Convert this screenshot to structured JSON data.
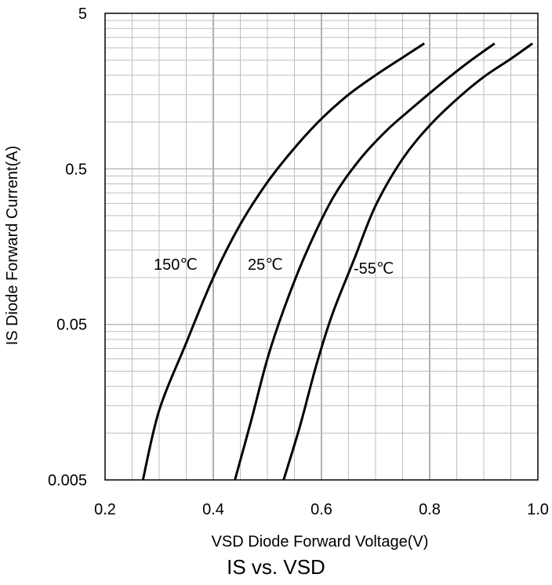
{
  "chart_data": {
    "type": "line",
    "title": "IS vs. VSD",
    "xlabel": "VSD Diode Forward Voltage(V)",
    "ylabel": "IS Diode Forward Current(A)",
    "xlim": [
      0.2,
      1.0
    ],
    "ylim": [
      0.005,
      5
    ],
    "yscale": "log",
    "grid": true,
    "x_ticks": [
      "0.2",
      "0.4",
      "0.6",
      "0.8",
      "1.0"
    ],
    "x_tick_values": [
      0.2,
      0.4,
      0.6,
      0.8,
      1.0
    ],
    "y_ticks": [
      "0.005",
      "0.05",
      "0.5",
      "5"
    ],
    "y_tick_values": [
      0.005,
      0.05,
      0.5,
      5
    ],
    "series": [
      {
        "name": "150℃",
        "x": [
          0.27,
          0.3,
          0.35,
          0.4,
          0.45,
          0.5,
          0.55,
          0.6,
          0.65,
          0.7,
          0.75,
          0.79
        ],
        "y": [
          0.005,
          0.014,
          0.038,
          0.1,
          0.22,
          0.41,
          0.68,
          1.05,
          1.5,
          2.0,
          2.6,
          3.2
        ]
      },
      {
        "name": "25℃",
        "x": [
          0.44,
          0.47,
          0.5,
          0.53,
          0.57,
          0.62,
          0.67,
          0.72,
          0.77,
          0.82,
          0.87,
          0.92
        ],
        "y": [
          0.005,
          0.012,
          0.03,
          0.062,
          0.14,
          0.32,
          0.57,
          0.88,
          1.25,
          1.75,
          2.4,
          3.2
        ]
      },
      {
        "name": "-55℃",
        "x": [
          0.53,
          0.56,
          0.59,
          0.62,
          0.66,
          0.7,
          0.75,
          0.8,
          0.85,
          0.9,
          0.95,
          0.99
        ],
        "y": [
          0.005,
          0.011,
          0.027,
          0.058,
          0.13,
          0.29,
          0.58,
          0.95,
          1.4,
          1.95,
          2.55,
          3.2
        ]
      }
    ]
  }
}
